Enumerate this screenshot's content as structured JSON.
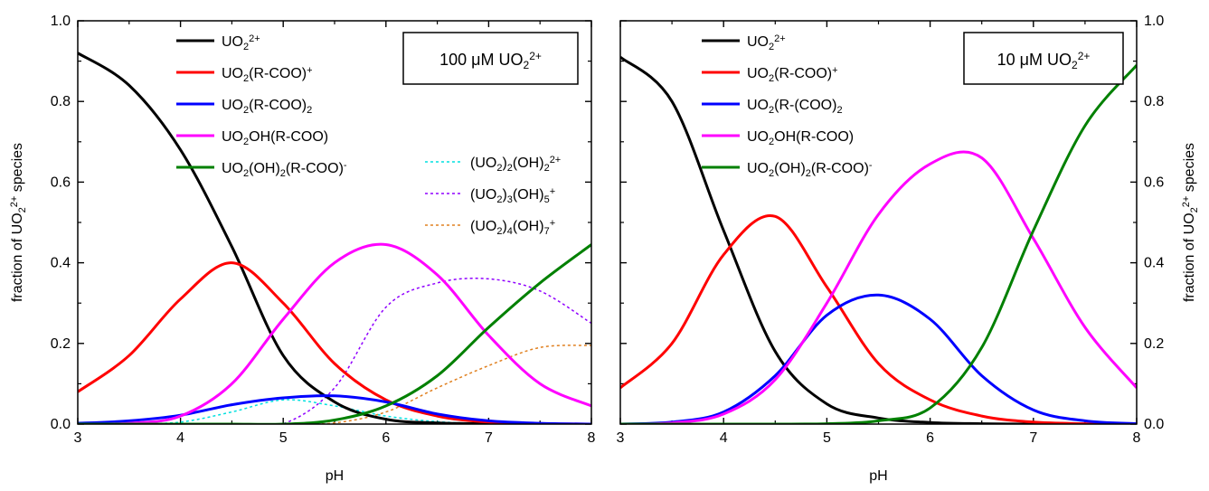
{
  "figure": {
    "xlabel": "pH",
    "ylabel": "fraction of UO<sub>2</sub><sup>2+</sup> species",
    "xticks": [
      "3",
      "4",
      "5",
      "6",
      "7",
      "8"
    ],
    "yticks": [
      "0.0",
      "0.2",
      "0.4",
      "0.6",
      "0.8",
      "1.0"
    ]
  },
  "chart_data": [
    {
      "type": "line",
      "panel": "left",
      "title": "100 μM UO<sub>2</sub><sup>2+</sup>",
      "xlabel": "pH",
      "ylabel": "fraction of UO<sub>2</sub><sup>2+</sup> species",
      "xlim": [
        3,
        8
      ],
      "ylim": [
        0,
        1
      ],
      "grid": false,
      "legend_position": "top",
      "series": [
        {
          "name": "UO<sub>2</sub><sup>2+</sup>",
          "color": "#000000",
          "style": "solid",
          "x": [
            3,
            3.5,
            4,
            4.5,
            5,
            5.5,
            6,
            6.5,
            7,
            7.5,
            8
          ],
          "y": [
            0.92,
            0.84,
            0.68,
            0.44,
            0.17,
            0.055,
            0.012,
            0.003,
            0.001,
            0,
            0
          ]
        },
        {
          "name": "UO<sub>2</sub>(R-COO)<sup>+</sup>",
          "color": "#ff0000",
          "style": "solid",
          "x": [
            3,
            3.5,
            4,
            4.5,
            5,
            5.5,
            6,
            6.5,
            7,
            7.5,
            8
          ],
          "y": [
            0.08,
            0.17,
            0.31,
            0.4,
            0.3,
            0.15,
            0.06,
            0.02,
            0.005,
            0.001,
            0
          ]
        },
        {
          "name": "UO<sub>2</sub>(R-COO)<sub>2</sub>",
          "color": "#0000ff",
          "style": "solid",
          "x": [
            3,
            3.5,
            4,
            4.5,
            5,
            5.5,
            6,
            6.5,
            7,
            7.5,
            8
          ],
          "y": [
            0.002,
            0.008,
            0.022,
            0.048,
            0.065,
            0.07,
            0.055,
            0.025,
            0.008,
            0.002,
            0
          ]
        },
        {
          "name": "UO<sub>2</sub>OH(R-COO)",
          "color": "#ff00ff",
          "style": "solid",
          "x": [
            3,
            3.5,
            4,
            4.5,
            5,
            5.5,
            6,
            6.5,
            7,
            7.5,
            8
          ],
          "y": [
            0,
            0.002,
            0.02,
            0.1,
            0.26,
            0.4,
            0.445,
            0.37,
            0.22,
            0.1,
            0.045
          ]
        },
        {
          "name": "UO<sub>2</sub>(OH)<sub>2</sub>(R-COO)<sup>-</sup>",
          "color": "#008000",
          "style": "solid",
          "x": [
            3,
            3.5,
            4,
            4.5,
            5,
            5.5,
            6,
            6.5,
            7,
            7.5,
            8
          ],
          "y": [
            0,
            0,
            0,
            0,
            0,
            0.01,
            0.045,
            0.12,
            0.24,
            0.35,
            0.445
          ]
        },
        {
          "name": "(UO<sub>2</sub>)<sub>2</sub>(OH)<sub>2</sub><sup>2+</sup>",
          "color": "#00e0e0",
          "style": "dashed",
          "x": [
            3,
            3.5,
            4,
            4.5,
            5,
            5.5,
            6,
            6.5,
            7,
            7.5,
            8
          ],
          "y": [
            0,
            0.001,
            0.005,
            0.03,
            0.06,
            0.045,
            0.02,
            0.006,
            0.001,
            0,
            0
          ]
        },
        {
          "name": "(UO<sub>2</sub>)<sub>3</sub>(OH)<sub>5</sub><sup>+</sup>",
          "color": "#9000ff",
          "style": "dashed",
          "x": [
            3,
            3.5,
            4,
            4.5,
            5,
            5.5,
            6,
            6.5,
            7,
            7.5,
            8
          ],
          "y": [
            0,
            0,
            0,
            0,
            0.001,
            0.09,
            0.29,
            0.35,
            0.36,
            0.33,
            0.25
          ]
        },
        {
          "name": "(UO<sub>2</sub>)<sub>4</sub>(OH)<sub>7</sub><sup>+</sup>",
          "color": "#e08020",
          "style": "dashed",
          "x": [
            3,
            3.5,
            4,
            4.5,
            5,
            5.5,
            6,
            6.5,
            7,
            7.5,
            8
          ],
          "y": [
            0,
            0,
            0,
            0,
            0,
            0.003,
            0.03,
            0.09,
            0.145,
            0.19,
            0.195
          ]
        }
      ]
    },
    {
      "type": "line",
      "panel": "right",
      "title": "10 μM UO<sub>2</sub><sup>2+</sup>",
      "xlabel": "pH",
      "ylabel": "fraction of UO<sub>2</sub><sup>2+</sup> species",
      "xlim": [
        3,
        8
      ],
      "ylim": [
        0,
        1
      ],
      "grid": false,
      "legend_position": "top-left",
      "series": [
        {
          "name": "UO<sub>2</sub><sup>2+</sup>",
          "color": "#000000",
          "style": "solid",
          "x": [
            3,
            3.5,
            4,
            4.5,
            5,
            5.5,
            6,
            6.5,
            7,
            7.5,
            8
          ],
          "y": [
            0.91,
            0.8,
            0.48,
            0.18,
            0.05,
            0.015,
            0.004,
            0.001,
            0,
            0,
            0
          ]
        },
        {
          "name": "UO<sub>2</sub>(R-COO)<sup>+</sup>",
          "color": "#ff0000",
          "style": "solid",
          "x": [
            3,
            3.5,
            4,
            4.5,
            5,
            5.5,
            6,
            6.5,
            7,
            7.5,
            8
          ],
          "y": [
            0.09,
            0.2,
            0.42,
            0.515,
            0.34,
            0.15,
            0.06,
            0.02,
            0.005,
            0.001,
            0
          ]
        },
        {
          "name": "UO<sub>2</sub>(R-(COO)<sub>2</sub>",
          "color": "#0000ff",
          "style": "solid",
          "x": [
            3,
            3.5,
            4,
            4.5,
            5,
            5.5,
            6,
            6.5,
            7,
            7.5,
            8
          ],
          "y": [
            0,
            0.005,
            0.03,
            0.12,
            0.27,
            0.32,
            0.26,
            0.12,
            0.035,
            0.008,
            0.001
          ]
        },
        {
          "name": "UO<sub>2</sub>OH(R-COO)",
          "color": "#ff00ff",
          "style": "solid",
          "x": [
            3,
            3.5,
            4,
            4.5,
            5,
            5.5,
            6,
            6.5,
            7,
            7.5,
            8
          ],
          "y": [
            0,
            0.003,
            0.025,
            0.11,
            0.3,
            0.52,
            0.645,
            0.66,
            0.46,
            0.24,
            0.09
          ]
        },
        {
          "name": "UO<sub>2</sub>(OH)<sub>2</sub>(R-COO)<sup>-</sup>",
          "color": "#008000",
          "style": "solid",
          "x": [
            3,
            3.5,
            4,
            4.5,
            5,
            5.5,
            6,
            6.5,
            7,
            7.5,
            8
          ],
          "y": [
            0,
            0,
            0,
            0,
            0.001,
            0.008,
            0.04,
            0.19,
            0.48,
            0.74,
            0.89
          ]
        }
      ]
    }
  ]
}
